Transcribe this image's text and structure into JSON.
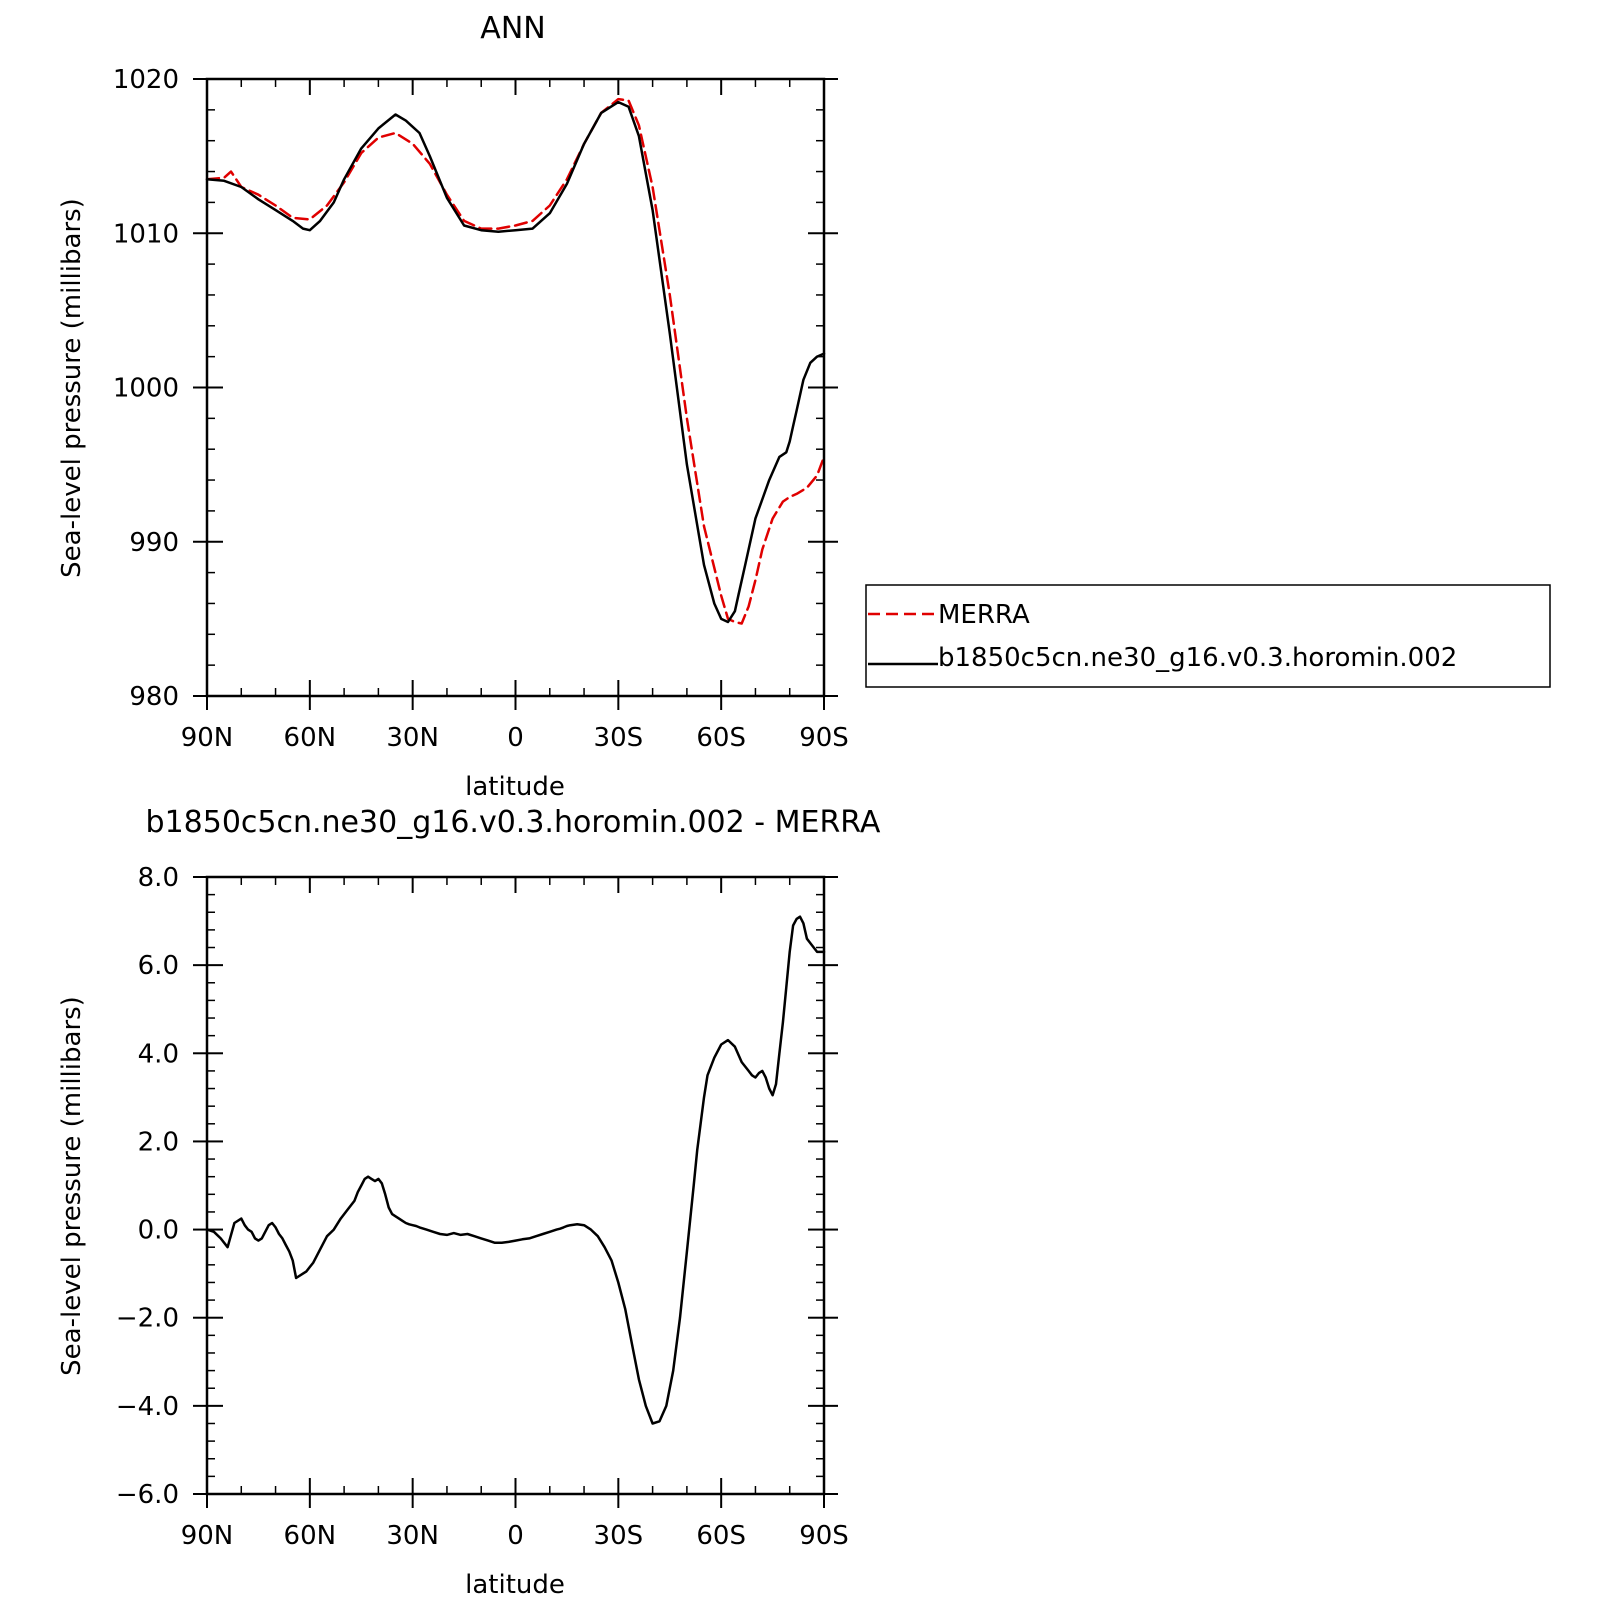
{
  "chart_data": [
    {
      "type": "line",
      "title": "ANN",
      "xlabel": "latitude",
      "ylabel": "Sea-level pressure (millibars)",
      "xlim": [
        90,
        -90
      ],
      "ylim": [
        980,
        1020
      ],
      "x_ticks": [
        {
          "value": 90,
          "label": "90N"
        },
        {
          "value": 60,
          "label": "60N"
        },
        {
          "value": 30,
          "label": "30N"
        },
        {
          "value": 0,
          "label": "0"
        },
        {
          "value": -30,
          "label": "30S"
        },
        {
          "value": -60,
          "label": "60S"
        },
        {
          "value": -90,
          "label": "90S"
        }
      ],
      "y_ticks": [
        {
          "value": 1020,
          "label": "1020"
        },
        {
          "value": 1010,
          "label": "1010"
        },
        {
          "value": 1000,
          "label": "1000"
        },
        {
          "value": 990,
          "label": "990"
        },
        {
          "value": 980,
          "label": "980"
        }
      ],
      "legend": {
        "placement": "right"
      },
      "series": [
        {
          "name": "MERRA",
          "color": "#e00000",
          "dash": true,
          "x": [
            90,
            85,
            83,
            80,
            75,
            70,
            65,
            60,
            55,
            50,
            45,
            40,
            35,
            30,
            25,
            20,
            15,
            10,
            5,
            0,
            -5,
            -10,
            -15,
            -20,
            -25,
            -30,
            -33,
            -36,
            -40,
            -45,
            -50,
            -55,
            -60,
            -62,
            -64,
            -66,
            -68,
            -70,
            -72,
            -75,
            -78,
            -80,
            -82,
            -85,
            -88,
            -90
          ],
          "y": [
            1013.5,
            1013.6,
            1014.0,
            1013.0,
            1012.5,
            1011.8,
            1011.0,
            1010.9,
            1011.8,
            1013.3,
            1015.2,
            1016.2,
            1016.5,
            1015.8,
            1014.5,
            1012.5,
            1010.8,
            1010.3,
            1010.3,
            1010.5,
            1010.8,
            1011.8,
            1013.5,
            1015.8,
            1017.8,
            1018.7,
            1018.6,
            1017.0,
            1013.0,
            1006.0,
            998.0,
            991.0,
            986.5,
            985.0,
            984.8,
            984.7,
            985.8,
            987.5,
            989.5,
            991.5,
            992.6,
            992.9,
            993.1,
            993.5,
            994.3,
            995.5
          ]
        },
        {
          "name": "b1850c5cn.ne30_g16.v0.3.horomin.002",
          "color": "#000000",
          "dash": false,
          "x": [
            90,
            85,
            80,
            75,
            70,
            65,
            62,
            60,
            57,
            53,
            50,
            45,
            40,
            35,
            32,
            28,
            25,
            20,
            15,
            10,
            5,
            0,
            -5,
            -10,
            -15,
            -20,
            -25,
            -30,
            -33,
            -36,
            -40,
            -45,
            -50,
            -55,
            -58,
            -60,
            -62,
            -64,
            -65,
            -67,
            -70,
            -74,
            -77,
            -79,
            -80,
            -81,
            -82,
            -84,
            -86,
            -88,
            -90
          ],
          "y": [
            1013.5,
            1013.4,
            1013.0,
            1012.2,
            1011.5,
            1010.8,
            1010.3,
            1010.2,
            1010.8,
            1012.0,
            1013.5,
            1015.5,
            1016.8,
            1017.7,
            1017.3,
            1016.5,
            1015.0,
            1012.3,
            1010.5,
            1010.2,
            1010.1,
            1010.2,
            1010.3,
            1011.3,
            1013.2,
            1015.8,
            1017.8,
            1018.5,
            1018.2,
            1016.3,
            1011.5,
            1003.5,
            995.0,
            988.5,
            986.0,
            985.0,
            984.8,
            985.5,
            986.5,
            988.5,
            991.5,
            994.0,
            995.5,
            995.8,
            996.5,
            997.5,
            998.5,
            1000.5,
            1001.6,
            1002.0,
            1002.2
          ]
        }
      ]
    },
    {
      "type": "line",
      "title": "b1850c5cn.ne30_g16.v0.3.horomin.002 - MERRA",
      "xlabel": "latitude",
      "ylabel": "Sea-level pressure (millibars)",
      "xlim": [
        90,
        -90
      ],
      "ylim": [
        -6.0,
        8.0
      ],
      "x_ticks": [
        {
          "value": 90,
          "label": "90N"
        },
        {
          "value": 60,
          "label": "60N"
        },
        {
          "value": 30,
          "label": "30N"
        },
        {
          "value": 0,
          "label": "0"
        },
        {
          "value": -30,
          "label": "30S"
        },
        {
          "value": -60,
          "label": "60S"
        },
        {
          "value": -90,
          "label": "90S"
        }
      ],
      "y_ticks": [
        {
          "value": 8.0,
          "label": "8.0"
        },
        {
          "value": 6.0,
          "label": "6.0"
        },
        {
          "value": 4.0,
          "label": "4.0"
        },
        {
          "value": 2.0,
          "label": "2.0"
        },
        {
          "value": 0.0,
          "label": "0.0"
        },
        {
          "value": -2.0,
          "label": "−2.0"
        },
        {
          "value": -4.0,
          "label": "−4.0"
        },
        {
          "value": -6.0,
          "label": "−6.0"
        }
      ],
      "series": [
        {
          "color": "#000000",
          "dash": false,
          "x": [
            90,
            88,
            86,
            84,
            82,
            80,
            79,
            78,
            77,
            76,
            75,
            74,
            72,
            71,
            70,
            69,
            68,
            67,
            66,
            65,
            64,
            62,
            61,
            60,
            59,
            57,
            55,
            53,
            51,
            49,
            47,
            46,
            45,
            44,
            43,
            42,
            41,
            40,
            39,
            38,
            37,
            36,
            35,
            34,
            33,
            32,
            31,
            30,
            29,
            28,
            26,
            24,
            22,
            20,
            18,
            16,
            14,
            12,
            10,
            8,
            6,
            4,
            2,
            0,
            -2,
            -4,
            -6,
            -8,
            -10,
            -12,
            -13,
            -14,
            -15,
            -16,
            -18,
            -20,
            -22,
            -24,
            -26,
            -28,
            -30,
            -32,
            -34,
            -36,
            -38,
            -40,
            -42,
            -44,
            -46,
            -48,
            -50,
            -52,
            -53,
            -54,
            -55,
            -56,
            -58,
            -60,
            -62,
            -64,
            -66,
            -68,
            -69,
            -70,
            -71,
            -72,
            -73,
            -74,
            -75,
            -76,
            -77,
            -78,
            -79,
            -80,
            -81,
            -82,
            -83,
            -84,
            -85,
            -86,
            -87,
            -88,
            -89,
            -90
          ],
          "y": [
            0.0,
            -0.05,
            -0.2,
            -0.4,
            0.15,
            0.25,
            0.1,
            0.0,
            -0.05,
            -0.2,
            -0.25,
            -0.2,
            0.1,
            0.15,
            0.05,
            -0.1,
            -0.2,
            -0.35,
            -0.5,
            -0.7,
            -1.1,
            -1.0,
            -0.95,
            -0.85,
            -0.75,
            -0.45,
            -0.15,
            0.0,
            0.25,
            0.45,
            0.65,
            0.85,
            1.0,
            1.15,
            1.2,
            1.15,
            1.1,
            1.15,
            1.05,
            0.8,
            0.5,
            0.35,
            0.3,
            0.25,
            0.2,
            0.15,
            0.12,
            0.1,
            0.08,
            0.05,
            0.0,
            -0.05,
            -0.1,
            -0.12,
            -0.08,
            -0.12,
            -0.1,
            -0.15,
            -0.2,
            -0.25,
            -0.3,
            -0.3,
            -0.28,
            -0.25,
            -0.22,
            -0.2,
            -0.15,
            -0.1,
            -0.05,
            0.0,
            0.02,
            0.05,
            0.08,
            0.1,
            0.12,
            0.1,
            0.0,
            -0.15,
            -0.4,
            -0.7,
            -1.2,
            -1.8,
            -2.6,
            -3.4,
            -4.0,
            -4.4,
            -4.35,
            -4.0,
            -3.2,
            -2.0,
            -0.5,
            1.0,
            1.8,
            2.4,
            3.0,
            3.5,
            3.9,
            4.2,
            4.3,
            4.15,
            3.8,
            3.6,
            3.5,
            3.45,
            3.55,
            3.6,
            3.45,
            3.2,
            3.05,
            3.3,
            4.0,
            4.7,
            5.5,
            6.3,
            6.9,
            7.05,
            7.1,
            6.95,
            6.6,
            6.5,
            6.4,
            6.3,
            6.3,
            6.3
          ]
        }
      ]
    }
  ]
}
